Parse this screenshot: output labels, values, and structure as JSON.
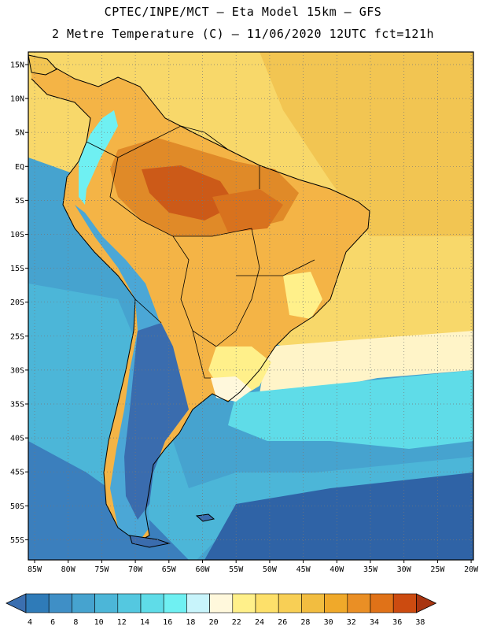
{
  "header": {
    "line1": "CPTEC/INPE/MCT –  Eta Model 15km – GFS",
    "line2": "2 Metre Temperature (C) – 11/06/2020 12UTC fct=121h"
  },
  "axes": {
    "lat_labels": [
      "15N",
      "10N",
      "5N",
      "EQ",
      "5S",
      "10S",
      "15S",
      "20S",
      "25S",
      "30S",
      "35S",
      "40S",
      "45S",
      "50S",
      "55S"
    ],
    "lon_labels": [
      "85W",
      "80W",
      "75W",
      "70W",
      "65W",
      "60W",
      "55W",
      "50W",
      "45W",
      "40W",
      "35W",
      "30W",
      "25W",
      "20W"
    ]
  },
  "colorbar": {
    "labels": [
      "4",
      "6",
      "8",
      "10",
      "12",
      "14",
      "16",
      "18",
      "20",
      "22",
      "24",
      "26",
      "28",
      "30",
      "32",
      "34",
      "36",
      "38"
    ],
    "colors": [
      "#3b6fb0",
      "#2f7bb8",
      "#3f8fc6",
      "#46a3cf",
      "#4cb6d8",
      "#54c8e0",
      "#5fdce8",
      "#6ff0f2",
      "#c8f4fb",
      "#fff8dc",
      "#fff08a",
      "#fde06a",
      "#f8cf55",
      "#f2bd40",
      "#f0a92a",
      "#ea8f25",
      "#e07218",
      "#cc4b10",
      "#a83510"
    ]
  },
  "regions": {
    "ocean_pacific_tropical": "#46a3cf",
    "ocean_south": "#2f5f9e",
    "land_hot": "#e08a28",
    "land_warm": "#f4b446",
    "atlantic_tropical": "#f8d86a"
  }
}
